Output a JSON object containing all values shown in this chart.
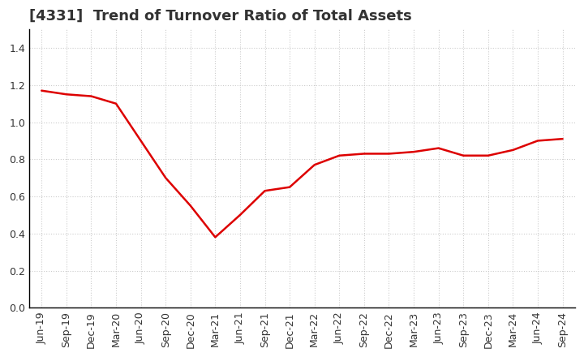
{
  "title": "[4331]  Trend of Turnover Ratio of Total Assets",
  "x_labels": [
    "Jun-19",
    "Sep-19",
    "Dec-19",
    "Mar-20",
    "Jun-20",
    "Sep-20",
    "Dec-20",
    "Mar-21",
    "Jun-21",
    "Sep-21",
    "Dec-21",
    "Mar-22",
    "Jun-22",
    "Sep-22",
    "Dec-22",
    "Mar-23",
    "Jun-23",
    "Sep-23",
    "Dec-23",
    "Mar-24",
    "Jun-24",
    "Sep-24"
  ],
  "y_values": [
    1.17,
    1.15,
    1.14,
    1.1,
    0.9,
    0.7,
    0.55,
    0.38,
    0.5,
    0.63,
    0.65,
    0.77,
    0.82,
    0.83,
    0.83,
    0.84,
    0.86,
    0.82,
    0.82,
    0.85,
    0.9,
    0.91
  ],
  "line_color": "#dd0000",
  "line_width": 1.8,
  "ylim": [
    0.0,
    1.5
  ],
  "yticks": [
    0.0,
    0.2,
    0.4,
    0.6,
    0.8,
    1.0,
    1.2,
    1.4
  ],
  "grid_color": "#cccccc",
  "background_color": "#ffffff",
  "title_fontsize": 13,
  "tick_fontsize": 9,
  "title_color": "#333333",
  "tick_color": "#333333"
}
